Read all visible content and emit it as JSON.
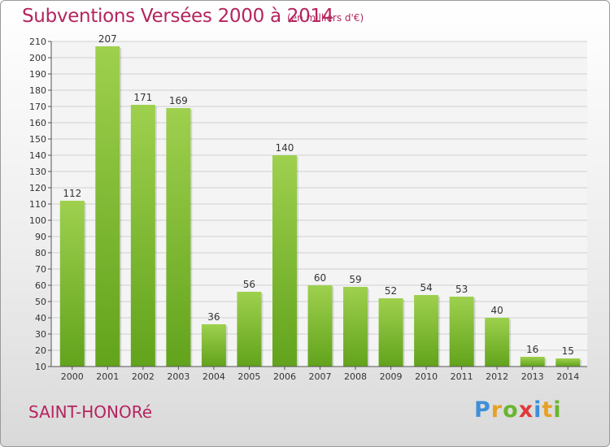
{
  "header": {
    "title": "Subventions Versées 2000 à 2014",
    "subtitle": "(en milliers d'€)"
  },
  "footer": {
    "commune": "SAINT-HONORé",
    "logo_text": "Proxiti"
  },
  "colors": {
    "title": "#b5245e",
    "bar_light": "#9ed04e",
    "bar_dark": "#62a31c"
  },
  "chart_data": {
    "type": "bar",
    "categories": [
      "2000",
      "2001",
      "2002",
      "2003",
      "2004",
      "2005",
      "2006",
      "2007",
      "2008",
      "2009",
      "2010",
      "2011",
      "2012",
      "2013",
      "2014"
    ],
    "values": [
      112,
      207,
      171,
      169,
      36,
      56,
      140,
      60,
      59,
      52,
      54,
      53,
      40,
      16,
      15
    ],
    "title": "Subventions Versées 2000 à 2014",
    "subtitle": "(en milliers d'€)",
    "xlabel": "",
    "ylabel": "",
    "ylim": [
      10,
      210
    ],
    "yticks": [
      10,
      20,
      30,
      40,
      50,
      60,
      70,
      80,
      90,
      100,
      110,
      120,
      130,
      140,
      150,
      160,
      170,
      180,
      190,
      200,
      210
    ],
    "grid": true,
    "data_labels": true
  }
}
